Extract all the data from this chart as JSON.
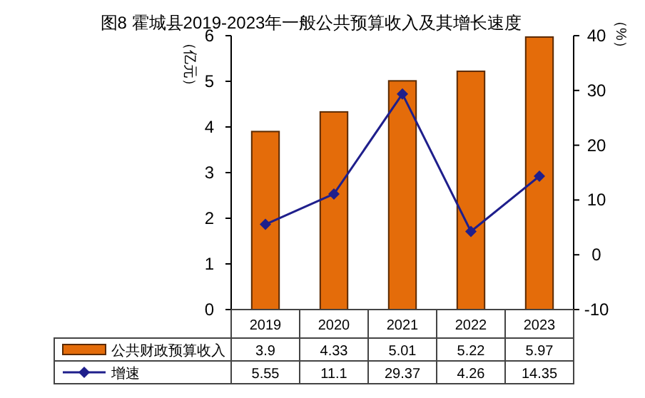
{
  "chart_data": {
    "type": "bar",
    "title": "图8 霍城县2019-2023年一般公共预算收入及其增长速度",
    "ylabel": "（亿元）",
    "y2label": "（%）",
    "categories": [
      "2019",
      "2020",
      "2021",
      "2022",
      "2023"
    ],
    "series": [
      {
        "name": "公共财政预算收入",
        "color": "#e46c0a",
        "values": [
          3.9,
          4.33,
          5.01,
          5.22,
          5.97
        ]
      },
      {
        "name": "增速",
        "type": "line",
        "axis": "y2",
        "color": "#1f1f8c",
        "marker": "diamond",
        "values": [
          5.55,
          11.1,
          29.37,
          4.26,
          14.35
        ]
      }
    ],
    "ylim": [
      0,
      6
    ],
    "yticks": [
      0,
      1,
      2,
      3,
      4,
      5,
      6
    ],
    "y2lim": [
      -10,
      40
    ],
    "y2ticks": [
      -10,
      0,
      10,
      20,
      30,
      40
    ],
    "data_labels": true,
    "legend": "bottom",
    "grid": false
  }
}
